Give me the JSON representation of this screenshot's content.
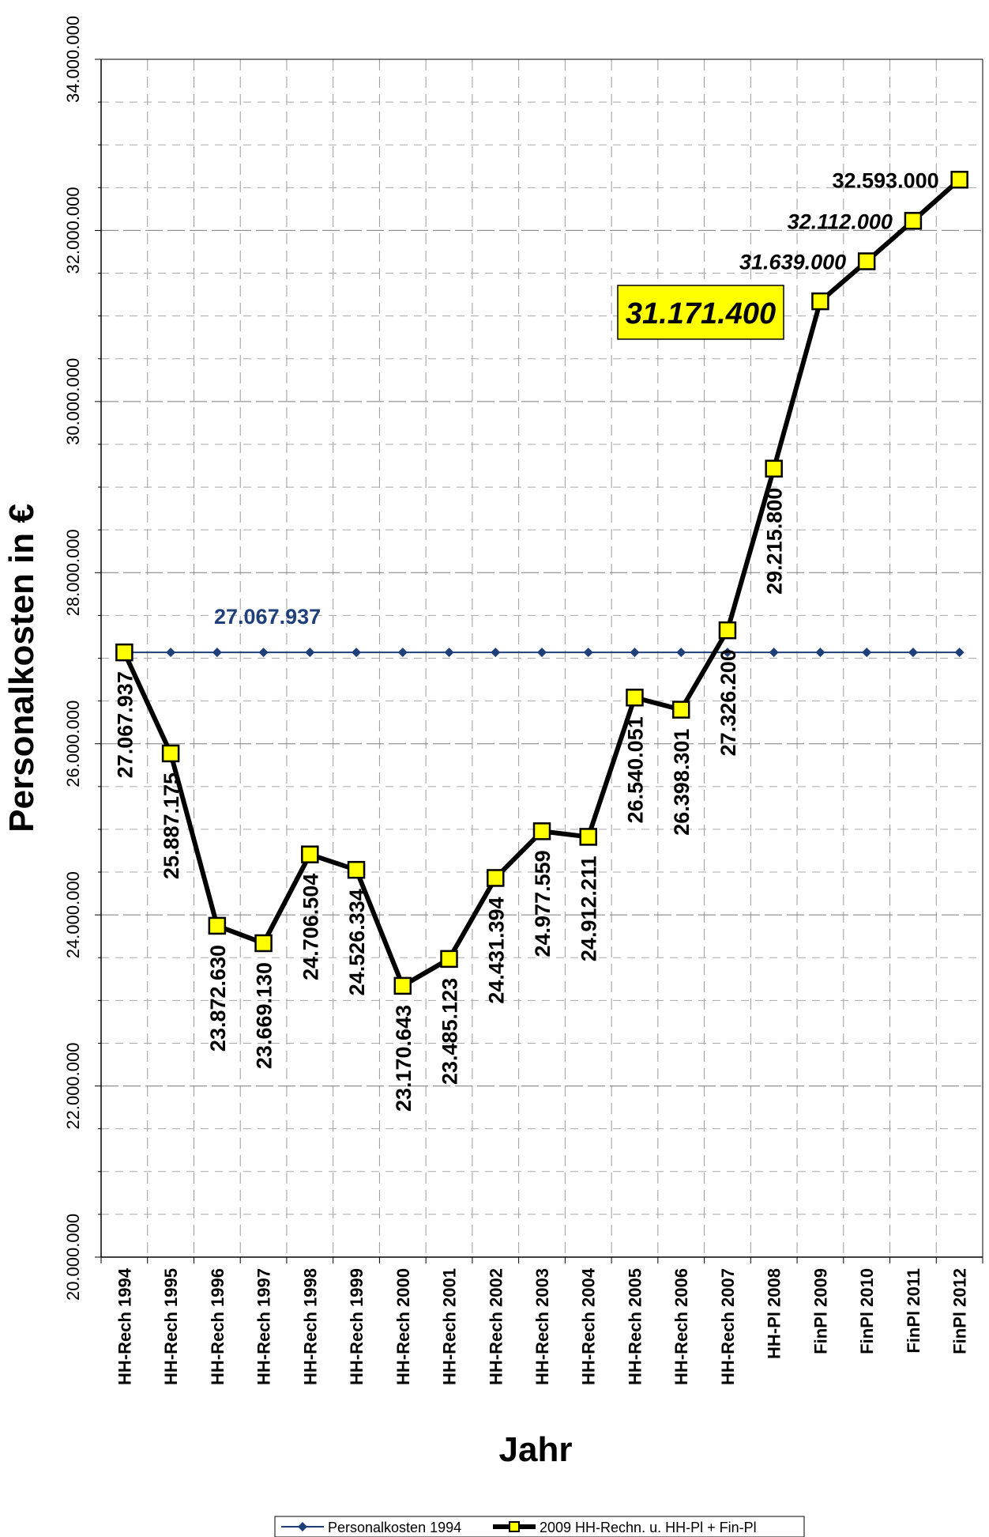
{
  "chart_data": {
    "type": "line",
    "ylabel": "Personalkosten in €",
    "xlabel": "Jahr",
    "ylim": [
      20000000,
      34000000
    ],
    "y_ticks": [
      "20.000.000",
      "22.000.000",
      "24.000.000",
      "26.000.000",
      "28.000.000",
      "30.000.000",
      "32.000.000",
      "34.000.000"
    ],
    "y_tick_values": [
      20000000,
      22000000,
      24000000,
      26000000,
      28000000,
      30000000,
      32000000,
      34000000
    ],
    "grid": true,
    "legend_position": "bottom",
    "categories": [
      "HH-Rech 1994",
      "HH-Rech 1995",
      "HH-Rech 1996",
      "HH-Rech 1997",
      "HH-Rech 1998",
      "HH-Rech 1999",
      "HH-Rech 2000",
      "HH-Rech 2001",
      "HH-Rech 2002",
      "HH-Rech 2003",
      "HH-Rech 2004",
      "HH-Rech 2005",
      "HH-Rech 2006",
      "HH-Rech 2007",
      "HH-Pl 2008",
      "FinPl 2009",
      "FinPl 2010",
      "FinPl 2011",
      "FinPl 2012"
    ],
    "series": [
      {
        "name": "Personalkosten 1994",
        "color": "#1f3f7a",
        "marker": "diamond",
        "values": [
          27067937,
          27067937,
          27067937,
          27067937,
          27067937,
          27067937,
          27067937,
          27067937,
          27067937,
          27067937,
          27067937,
          27067937,
          27067937,
          27067937,
          27067937,
          27067937,
          27067937,
          27067937,
          27067937
        ],
        "label": "27.067.937"
      },
      {
        "name": "2009 HH-Rechn. u. HH-Pl + Fin-Pl",
        "color": "#000000",
        "marker_fill": "#ffff00",
        "marker": "square",
        "values": [
          27067937,
          25887175,
          23872630,
          23669130,
          24706504,
          24526334,
          23170643,
          23485123,
          24431394,
          24977559,
          24912211,
          26540051,
          26398301,
          27326200,
          29215800,
          31171400,
          31639000,
          32112000,
          32593000
        ],
        "labels": [
          "27.067.937",
          "25.887.175",
          "23.872.630",
          "23.669.130",
          "24.706.504",
          "24.526.334",
          "23.170.643",
          "23.485.123",
          "24.431.394",
          "24.977.559",
          "24.912.211",
          "26.540.051",
          "26.398.301",
          "27.326.200",
          "29.215.800",
          "31.171.400",
          "31.639.000",
          "32.112.000",
          "32.593.000"
        ]
      }
    ],
    "callout": {
      "text": "31.171.400",
      "color": "#ffff00"
    }
  }
}
